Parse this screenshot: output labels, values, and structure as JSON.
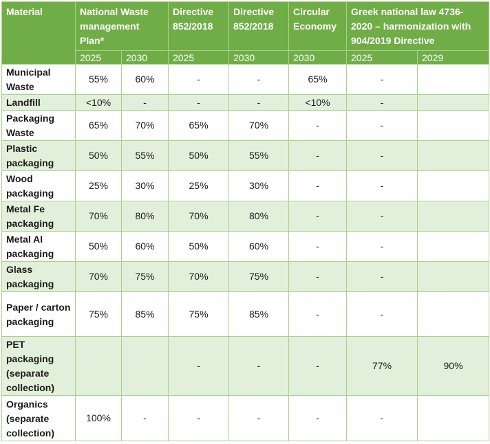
{
  "header": {
    "material": "Material",
    "groups": [
      "National Waste management Plan*",
      "Directive 852/2018",
      "Directive 852/2018",
      "Circular Economy",
      "Greek national law 4736-2020 – harmonization with 904/2019 Directive"
    ],
    "years": [
      "2025",
      "2030",
      "2025",
      "2030",
      "2030",
      "2025",
      "2029"
    ]
  },
  "rows": [
    {
      "material": "Municipal Waste",
      "values": [
        "55%",
        "60%",
        "-",
        "-",
        "65%",
        "-",
        ""
      ]
    },
    {
      "material": "Landfill",
      "values": [
        "<10%",
        "-",
        "-",
        "-",
        "<10%",
        "-",
        ""
      ]
    },
    {
      "material": "Packaging Waste",
      "values": [
        "65%",
        "70%",
        "65%",
        "70%",
        "-",
        "-",
        ""
      ]
    },
    {
      "material": "Plastic packaging",
      "values": [
        "50%",
        "55%",
        "50%",
        "55%",
        "-",
        "-",
        ""
      ]
    },
    {
      "material": "Wood packaging",
      "values": [
        "25%",
        "30%",
        "25%",
        "30%",
        "-",
        "-",
        ""
      ]
    },
    {
      "material": "Metal Fe packaging",
      "values": [
        "70%",
        "80%",
        "70%",
        "80%",
        "-",
        "-",
        ""
      ]
    },
    {
      "material": "Metal Al packaging",
      "values": [
        "50%",
        "60%",
        "50%",
        "60%",
        "-",
        "-",
        ""
      ]
    },
    {
      "material": "Glass packaging",
      "values": [
        "70%",
        "75%",
        "70%",
        "75%",
        "-",
        "-",
        ""
      ]
    },
    {
      "material": "Paper / carton packaging",
      "values": [
        "75%",
        "85%",
        "75%",
        "85%",
        "-",
        "-",
        ""
      ]
    },
    {
      "material": "PET packaging (separate collection)",
      "values": [
        "",
        "",
        "-",
        "-",
        "-",
        "77%",
        "90%"
      ]
    },
    {
      "material": "Organics (separate collection)",
      "values": [
        "100%",
        "-",
        "-",
        "-",
        "-",
        "-",
        ""
      ]
    }
  ]
}
